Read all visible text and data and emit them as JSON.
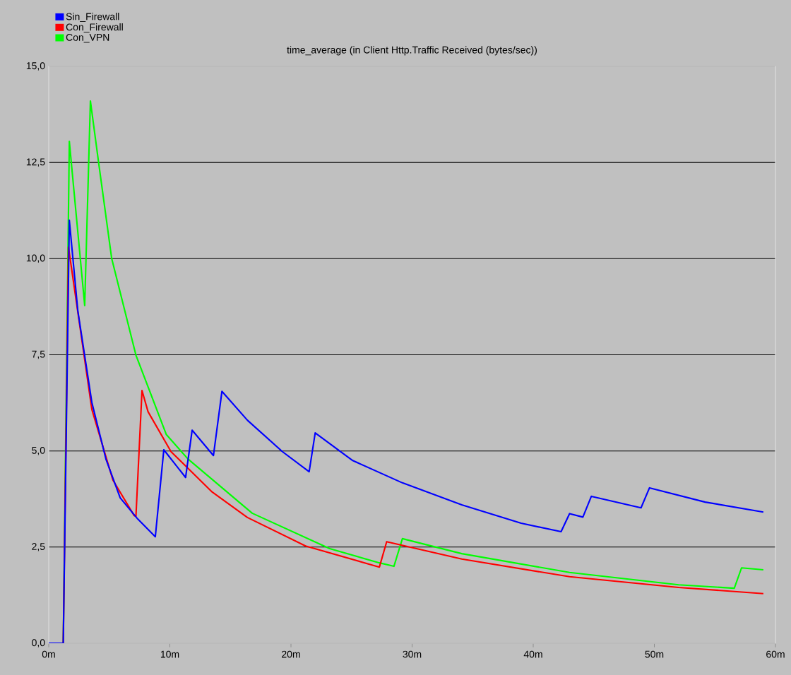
{
  "chart_data": {
    "type": "line",
    "title": "time_average (in Client Http.Traffic Received (bytes/sec))",
    "xlim": [
      0,
      60
    ],
    "ylim": [
      0,
      15
    ],
    "xticks": [
      {
        "value": 0,
        "label": "0m"
      },
      {
        "value": 10,
        "label": "10m"
      },
      {
        "value": 20,
        "label": "20m"
      },
      {
        "value": 30,
        "label": "30m"
      },
      {
        "value": 40,
        "label": "40m"
      },
      {
        "value": 50,
        "label": "50m"
      },
      {
        "value": 60,
        "label": "60m"
      }
    ],
    "yticks": [
      {
        "value": 0,
        "label": "0,0"
      },
      {
        "value": 2.5,
        "label": "2,5"
      },
      {
        "value": 5,
        "label": "5,0"
      },
      {
        "value": 7.5,
        "label": "7,5"
      },
      {
        "value": 10,
        "label": "10,0"
      },
      {
        "value": 12.5,
        "label": "12,5"
      },
      {
        "value": 15,
        "label": "15,0"
      }
    ],
    "grid": "y",
    "legend": "top left",
    "series": [
      {
        "name": "Sin_Firewall",
        "color": "#0000ff",
        "x": [
          0,
          1.2,
          1.7,
          2.4,
          3.56,
          4.72,
          5.9,
          7.35,
          8.8,
          9.5,
          11.3,
          11.84,
          13.6,
          14.3,
          16.4,
          19.3,
          21.5,
          22.0,
          25.1,
          29.2,
          34.1,
          39.0,
          42.3,
          43.0,
          44.1,
          44.8,
          48.9,
          49.6,
          54.2,
          59.0
        ],
        "values": [
          0,
          0,
          11.0,
          8.65,
          6.26,
          4.79,
          3.78,
          3.23,
          2.77,
          5.03,
          4.31,
          5.54,
          4.88,
          6.55,
          5.8,
          4.98,
          4.46,
          5.47,
          4.75,
          4.17,
          3.6,
          3.12,
          2.9,
          3.37,
          3.28,
          3.82,
          3.52,
          4.04,
          3.67,
          3.41
        ]
      },
      {
        "name": "Con_Firewall",
        "color": "#ff0000",
        "x": [
          0,
          1.2,
          1.63,
          3.56,
          5.3,
          7.05,
          7.2,
          7.7,
          8.2,
          10.1,
          13.5,
          16.4,
          21.2,
          27.3,
          27.9,
          34.1,
          43.0,
          52.0,
          59.0
        ],
        "values": [
          0,
          0,
          10.3,
          6.08,
          4.24,
          3.32,
          3.3,
          6.57,
          6.02,
          4.98,
          3.93,
          3.27,
          2.53,
          1.98,
          2.64,
          2.19,
          1.73,
          1.45,
          1.29
        ]
      },
      {
        "name": "Con_VPN",
        "color": "#00ff00",
        "x": [
          0,
          1.2,
          1.7,
          2.97,
          3.44,
          4.1,
          5.2,
          7.2,
          9.7,
          11.5,
          16.8,
          23.2,
          27.3,
          28.5,
          29.2,
          34.1,
          43.0,
          52.0,
          56.6,
          57.2,
          59.0
        ],
        "values": [
          0,
          0,
          13.05,
          8.78,
          14.1,
          12.54,
          10.0,
          7.49,
          5.43,
          4.79,
          3.38,
          2.46,
          2.09,
          2.0,
          2.72,
          2.33,
          1.84,
          1.52,
          1.43,
          1.96,
          1.91
        ]
      }
    ]
  }
}
